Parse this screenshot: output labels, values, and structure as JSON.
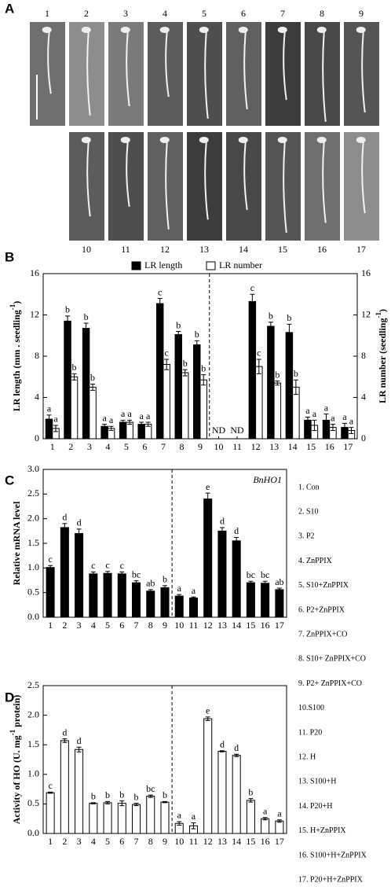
{
  "panel_labels": [
    "A",
    "B",
    "C",
    "D"
  ],
  "photos": {
    "top_labels": [
      "1",
      "2",
      "3",
      "4",
      "5",
      "6",
      "7",
      "8",
      "9"
    ],
    "bottom_labels": [
      "10",
      "11",
      "12",
      "13",
      "14",
      "15",
      "16",
      "17"
    ]
  },
  "chart_data": [
    {
      "type": "bar",
      "categories": [
        "1",
        "2",
        "3",
        "4",
        "5",
        "6",
        "7",
        "8",
        "9",
        "10",
        "11",
        "12",
        "13",
        "14",
        "15",
        "16",
        "17"
      ],
      "ylabel_parts": [
        "LR length  (mm . seedling",
        "-1",
        ")"
      ],
      "y2label_parts": [
        "LR number  (seedling",
        "-1",
        ")"
      ],
      "ylim": [
        0,
        16
      ],
      "yticks": [
        0,
        4,
        8,
        12,
        16
      ],
      "y2lim": [
        0,
        16
      ],
      "y2ticks": [
        0,
        4,
        8,
        12,
        16
      ],
      "missing_labels": [
        null,
        null,
        null,
        null,
        null,
        null,
        null,
        null,
        null,
        "ND",
        "ND",
        null,
        null,
        null,
        null,
        null,
        null
      ],
      "series": [
        {
          "name": "LR length",
          "color": "#000000",
          "values": [
            1.9,
            11.4,
            10.7,
            1.2,
            1.6,
            1.4,
            13.1,
            10.1,
            9.1,
            null,
            null,
            13.3,
            10.9,
            10.3,
            1.8,
            1.8,
            1.1
          ],
          "errors": [
            0.4,
            0.5,
            0.5,
            0.2,
            0.2,
            0.2,
            0.5,
            0.3,
            0.4,
            null,
            null,
            0.7,
            0.4,
            0.8,
            0.3,
            0.6,
            0.4
          ],
          "letters": [
            "a",
            "b",
            "b",
            "a",
            "a",
            "a",
            "c",
            "b",
            "b",
            null,
            null,
            "c",
            "b",
            "b",
            "a",
            "a",
            "a"
          ]
        },
        {
          "name": "LR number",
          "color": "#ffffff",
          "axis": "y2",
          "values": [
            1.0,
            6.0,
            5.0,
            1.0,
            1.6,
            1.4,
            7.2,
            6.4,
            5.7,
            null,
            null,
            7.0,
            5.4,
            5.0,
            1.3,
            1.1,
            0.8
          ],
          "errors": [
            0.3,
            0.3,
            0.3,
            0.2,
            0.2,
            0.2,
            0.5,
            0.3,
            0.5,
            null,
            null,
            0.7,
            0.2,
            0.7,
            0.5,
            0.3,
            0.3
          ],
          "letters": [
            "a",
            "b",
            "b",
            "a",
            "a",
            "a",
            "c",
            "b",
            "b",
            null,
            null,
            "c",
            "b",
            "b",
            "a",
            "a",
            "a"
          ]
        }
      ]
    },
    {
      "type": "bar",
      "categories": [
        "1",
        "2",
        "3",
        "4",
        "5",
        "6",
        "7",
        "8",
        "9",
        "10",
        "11",
        "12",
        "13",
        "14",
        "15",
        "16",
        "17"
      ],
      "ylabel_parts": [
        "Relative mRNA level"
      ],
      "annotation": "BnHO1",
      "ylim": [
        0,
        3.0
      ],
      "yticks": [
        {
          "value": 0,
          "label": "0.0"
        },
        0.5,
        {
          "value": 1,
          "label": "1.0"
        },
        1.5,
        {
          "value": 2,
          "label": "2.0"
        },
        2.5,
        {
          "value": 3,
          "label": "3.0"
        }
      ],
      "series": [
        {
          "color": "#000000",
          "values": [
            1.01,
            1.82,
            1.7,
            0.88,
            0.89,
            0.88,
            0.7,
            0.53,
            0.6,
            0.43,
            0.39,
            2.4,
            1.75,
            1.55,
            0.7,
            0.69,
            0.56
          ],
          "errors": [
            0.04,
            0.08,
            0.09,
            0.04,
            0.04,
            0.04,
            0.04,
            0.03,
            0.04,
            0.03,
            0.02,
            0.12,
            0.07,
            0.07,
            0.03,
            0.04,
            0.03
          ],
          "letters": [
            "c",
            "d",
            "d",
            "c",
            "c",
            "c",
            "bc",
            "ab",
            "b",
            "a",
            "a",
            "e",
            "d",
            "d",
            "bc",
            "bc",
            "ab"
          ]
        }
      ]
    },
    {
      "type": "bar",
      "categories": [
        "1",
        "2",
        "3",
        "4",
        "5",
        "6",
        "7",
        "8",
        "9",
        "10",
        "11",
        "12",
        "13",
        "14",
        "15",
        "16",
        "17"
      ],
      "ylabel_parts": [
        "Activity of HO (U. mg",
        "-1",
        " protein)"
      ],
      "ylim": [
        0,
        2.5
      ],
      "yticks": [
        {
          "value": 0,
          "label": "0.0"
        },
        0.5,
        {
          "value": 1,
          "label": "1.0"
        },
        1.5,
        {
          "value": 2,
          "label": "2.0"
        },
        2.5
      ],
      "series": [
        {
          "color": "#ffffff",
          "values": [
            0.69,
            1.57,
            1.42,
            0.51,
            0.52,
            0.51,
            0.49,
            0.63,
            0.53,
            0.17,
            0.13,
            1.94,
            1.39,
            1.32,
            0.56,
            0.25,
            0.21
          ],
          "errors": [
            0.01,
            0.03,
            0.04,
            0.01,
            0.02,
            0.04,
            0.02,
            0.02,
            0.01,
            0.03,
            0.05,
            0.03,
            0.01,
            0.02,
            0.03,
            0.02,
            0.02
          ],
          "letters": [
            "c",
            "d",
            "d",
            "b",
            "b",
            "b",
            "b",
            "bc",
            "b",
            "a",
            "a",
            "e",
            "d",
            "d",
            "b",
            "a",
            "a"
          ]
        }
      ]
    }
  ],
  "treatments": [
    "1. Con",
    "2. S10",
    "3. P2",
    "4. ZnPPIX",
    "5. S10+ZnPPIX",
    "6. P2+ZnPPIX",
    "7. ZnPPIX+CO",
    "8. S10+ ZnPPIX+CO",
    "9. P2+ ZnPPIX+CO",
    "10.S100",
    "11. P20",
    "12. H",
    "13. S100+H",
    "14. P20+H",
    "15. H+ZnPPIX",
    "16. S100+H+ZnPPIX",
    "17. P20+H+ZnPPIX"
  ]
}
